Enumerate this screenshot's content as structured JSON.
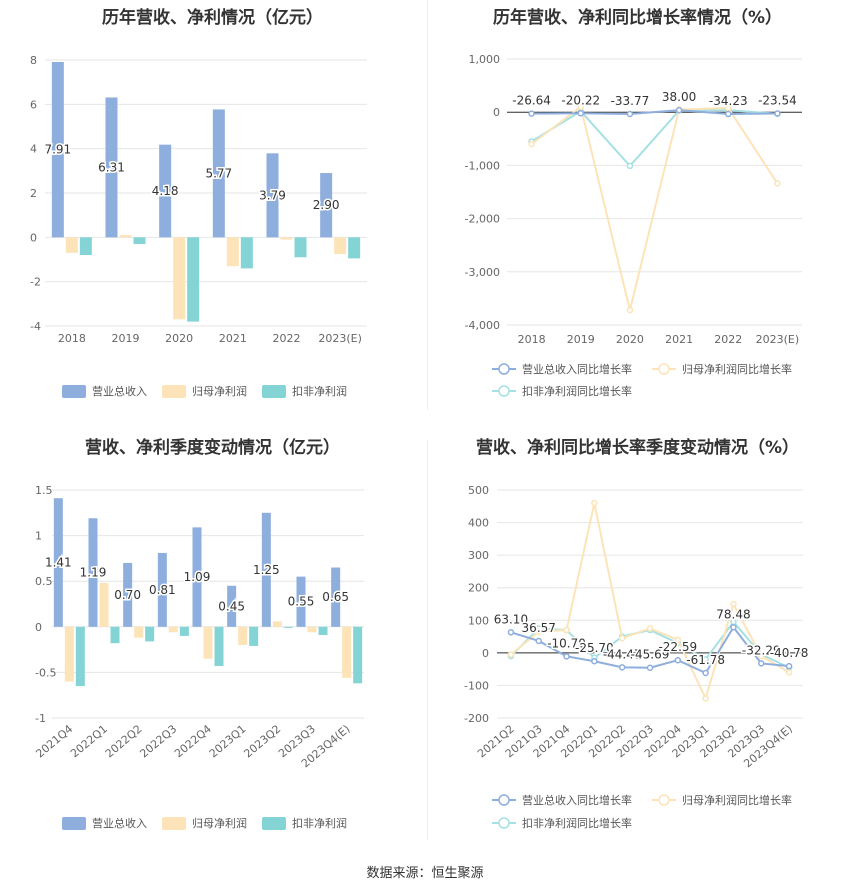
{
  "source": "数据来源：恒生聚源",
  "colors": {
    "revenue": "#8eaedd",
    "net_profit": "#fde4b8",
    "deducted_profit": "#84d4d6",
    "line_revenue": "#8eaedd",
    "line_net_profit": "#fde4b8",
    "line_deducted_profit": "#a6e0e3",
    "grid": "#e6e6e6",
    "axis_text": "#666666"
  },
  "chart_data": [
    {
      "id": "annual-bar",
      "type": "bar",
      "title": "历年营收、净利情况（亿元）",
      "categories": [
        "2018",
        "2019",
        "2020",
        "2021",
        "2022",
        "2023(E)"
      ],
      "ylim": [
        -4,
        8
      ],
      "yticks": [
        -4,
        -2,
        0,
        2,
        4,
        6,
        8
      ],
      "ytick_labels": [
        "-4",
        "-2",
        "0",
        "2",
        "4",
        "6",
        "8"
      ],
      "grid": true,
      "legend": "bottom",
      "series": [
        {
          "name": "营业总收入",
          "values": [
            7.91,
            6.31,
            4.18,
            5.77,
            3.79,
            2.9
          ],
          "labels": [
            "7.91",
            "6.31",
            "4.18",
            "5.77",
            "3.79",
            "2.90"
          ]
        },
        {
          "name": "归母净利润",
          "values": [
            -0.7,
            0.1,
            -3.7,
            -1.3,
            -0.1,
            -0.75
          ]
        },
        {
          "name": "扣非净利润",
          "values": [
            -0.8,
            -0.3,
            -3.8,
            -1.4,
            -0.9,
            -0.95
          ]
        }
      ]
    },
    {
      "id": "annual-line",
      "type": "line",
      "title": "历年营收、净利同比增长率情况（%）",
      "categories": [
        "2018",
        "2019",
        "2020",
        "2021",
        "2022",
        "2023(E)"
      ],
      "ylim": [
        -4000,
        1000
      ],
      "yticks": [
        -4000,
        -3000,
        -2000,
        -1000,
        0,
        1000
      ],
      "ytick_labels": [
        "-4,000",
        "-3,000",
        "-2,000",
        "-1,000",
        "0",
        "1,000"
      ],
      "grid": true,
      "legend": "bottom",
      "series": [
        {
          "name": "营业总收入同比增长率",
          "values": [
            -26.64,
            -20.22,
            -33.77,
            38.0,
            -34.23,
            -23.54
          ],
          "labels": [
            "-26.64",
            "-20.22",
            "-33.77",
            "38.00",
            "-34.23",
            "-23.54"
          ]
        },
        {
          "name": "归母净利润同比增长率",
          "values": [
            -600,
            100,
            -3720,
            50,
            80,
            -1340
          ]
        },
        {
          "name": "扣非净利润同比增长率",
          "values": [
            -550,
            20,
            -1010,
            30,
            40,
            -30
          ]
        }
      ]
    },
    {
      "id": "quarter-bar",
      "type": "bar",
      "title": "营收、净利季度变动情况（亿元）",
      "categories": [
        "2021Q4",
        "2022Q1",
        "2022Q2",
        "2022Q3",
        "2022Q4",
        "2023Q1",
        "2023Q2",
        "2023Q3",
        "2023Q4(E)"
      ],
      "ylim": [
        -1,
        1.5
      ],
      "yticks": [
        -1,
        -0.5,
        0,
        0.5,
        1,
        1.5
      ],
      "ytick_labels": [
        "-1",
        "-0.5",
        "0",
        "0.5",
        "1",
        "1.5"
      ],
      "grid": true,
      "legend": "bottom",
      "series": [
        {
          "name": "营业总收入",
          "values": [
            1.41,
            1.19,
            0.7,
            0.81,
            1.09,
            0.45,
            1.25,
            0.55,
            0.65
          ],
          "labels": [
            "1.41",
            "1.19",
            "0.70",
            "0.81",
            "1.09",
            "0.45",
            "1.25",
            "0.55",
            "0.65"
          ]
        },
        {
          "name": "归母净利润",
          "values": [
            -0.6,
            0.48,
            -0.12,
            -0.06,
            -0.35,
            -0.2,
            0.06,
            -0.06,
            -0.56
          ]
        },
        {
          "name": "扣非净利润",
          "values": [
            -0.65,
            -0.18,
            -0.16,
            -0.1,
            -0.43,
            -0.21,
            -0.01,
            -0.09,
            -0.62
          ]
        }
      ]
    },
    {
      "id": "quarter-line",
      "type": "line",
      "title": "营收、净利同比增长率季度变动情况（%）",
      "categories": [
        "2021Q2",
        "2021Q3",
        "2021Q4",
        "2022Q1",
        "2022Q2",
        "2022Q3",
        "2022Q4",
        "2023Q1",
        "2023Q2",
        "2023Q3",
        "2023Q4(E)"
      ],
      "ylim": [
        -200,
        500
      ],
      "yticks": [
        -200,
        -100,
        0,
        100,
        200,
        300,
        400,
        500
      ],
      "ytick_labels": [
        "-200",
        "-100",
        "0",
        "100",
        "200",
        "300",
        "400",
        "500"
      ],
      "grid": true,
      "legend": "bottom",
      "series": [
        {
          "name": "营业总收入同比增长率",
          "values": [
            63.1,
            36.57,
            -10.7,
            -25.7,
            -44.47,
            -45.69,
            -22.59,
            -61.78,
            78.48,
            -32.29,
            -40.78
          ],
          "labels": [
            "63.10",
            "36.57",
            "-10.70",
            "-25.70",
            "-44.47",
            "-45.69",
            "-22.59",
            "-61.78",
            "78.48",
            "-32.29",
            "-40.78"
          ]
        },
        {
          "name": "归母净利润同比增长率",
          "values": [
            -5,
            65,
            70,
            460,
            45,
            75,
            40,
            -140,
            150,
            -10,
            -60
          ]
        },
        {
          "name": "扣非净利润同比增长率",
          "values": [
            -10,
            75,
            70,
            -15,
            50,
            70,
            30,
            -20,
            95,
            -5,
            -45
          ]
        }
      ]
    }
  ]
}
